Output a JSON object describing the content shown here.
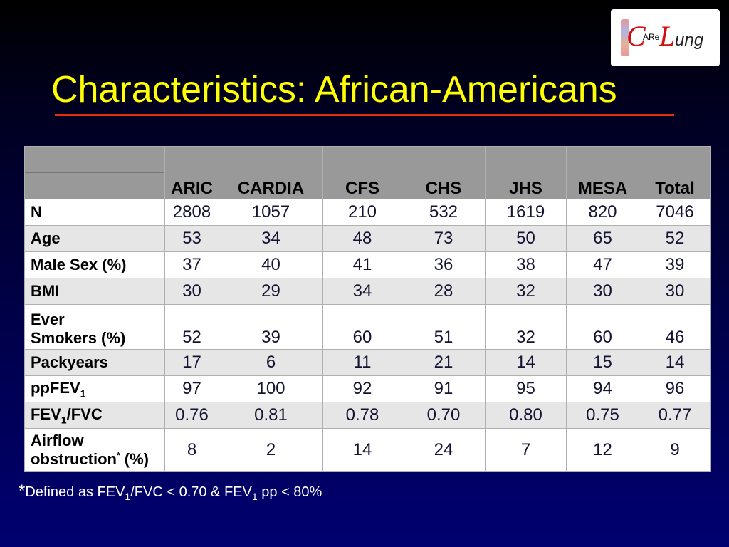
{
  "logo": {
    "text": "CARe Lung"
  },
  "title": "Characteristics: African-Americans",
  "table": {
    "columns": [
      "ARIC",
      "CARDIA",
      "CFS",
      "CHS",
      "JHS",
      "MESA",
      "Total"
    ],
    "rows": [
      {
        "label": "N",
        "values": [
          "2808",
          "1057",
          "210",
          "532",
          "1619",
          "820",
          "7046"
        ]
      },
      {
        "label": "Age",
        "values": [
          "53",
          "34",
          "48",
          "73",
          "50",
          "65",
          "52"
        ]
      },
      {
        "label": "Male Sex (%)",
        "values": [
          "37",
          "40",
          "41",
          "36",
          "38",
          "47",
          "39"
        ]
      },
      {
        "label": "BMI",
        "values": [
          "30",
          "29",
          "34",
          "28",
          "32",
          "30",
          "30"
        ]
      },
      {
        "label": "Ever Smokers (%)",
        "values": [
          "52",
          "39",
          "60",
          "51",
          "32",
          "60",
          "46"
        ]
      },
      {
        "label": "Packyears",
        "values": [
          "17",
          "6",
          "11",
          "21",
          "14",
          "15",
          "14"
        ]
      },
      {
        "label": "ppFEV1",
        "values": [
          "97",
          "100",
          "92",
          "91",
          "95",
          "94",
          "96"
        ]
      },
      {
        "label": "FEV1/FVC",
        "values": [
          "0.76",
          "0.81",
          "0.78",
          "0.70",
          "0.80",
          "0.75",
          "0.77"
        ]
      },
      {
        "label": "Airflow obstruction* (%)",
        "values": [
          "8",
          "2",
          "14",
          "24",
          "7",
          "12",
          "9"
        ]
      }
    ]
  },
  "footnote": "*Defined as FEV1/FVC < 0.70 & FEV1 pp < 80%",
  "colors": {
    "title": "#ffff00",
    "rule": "#e03010",
    "header": "#999999",
    "row_alt": "#e6e6e6"
  }
}
